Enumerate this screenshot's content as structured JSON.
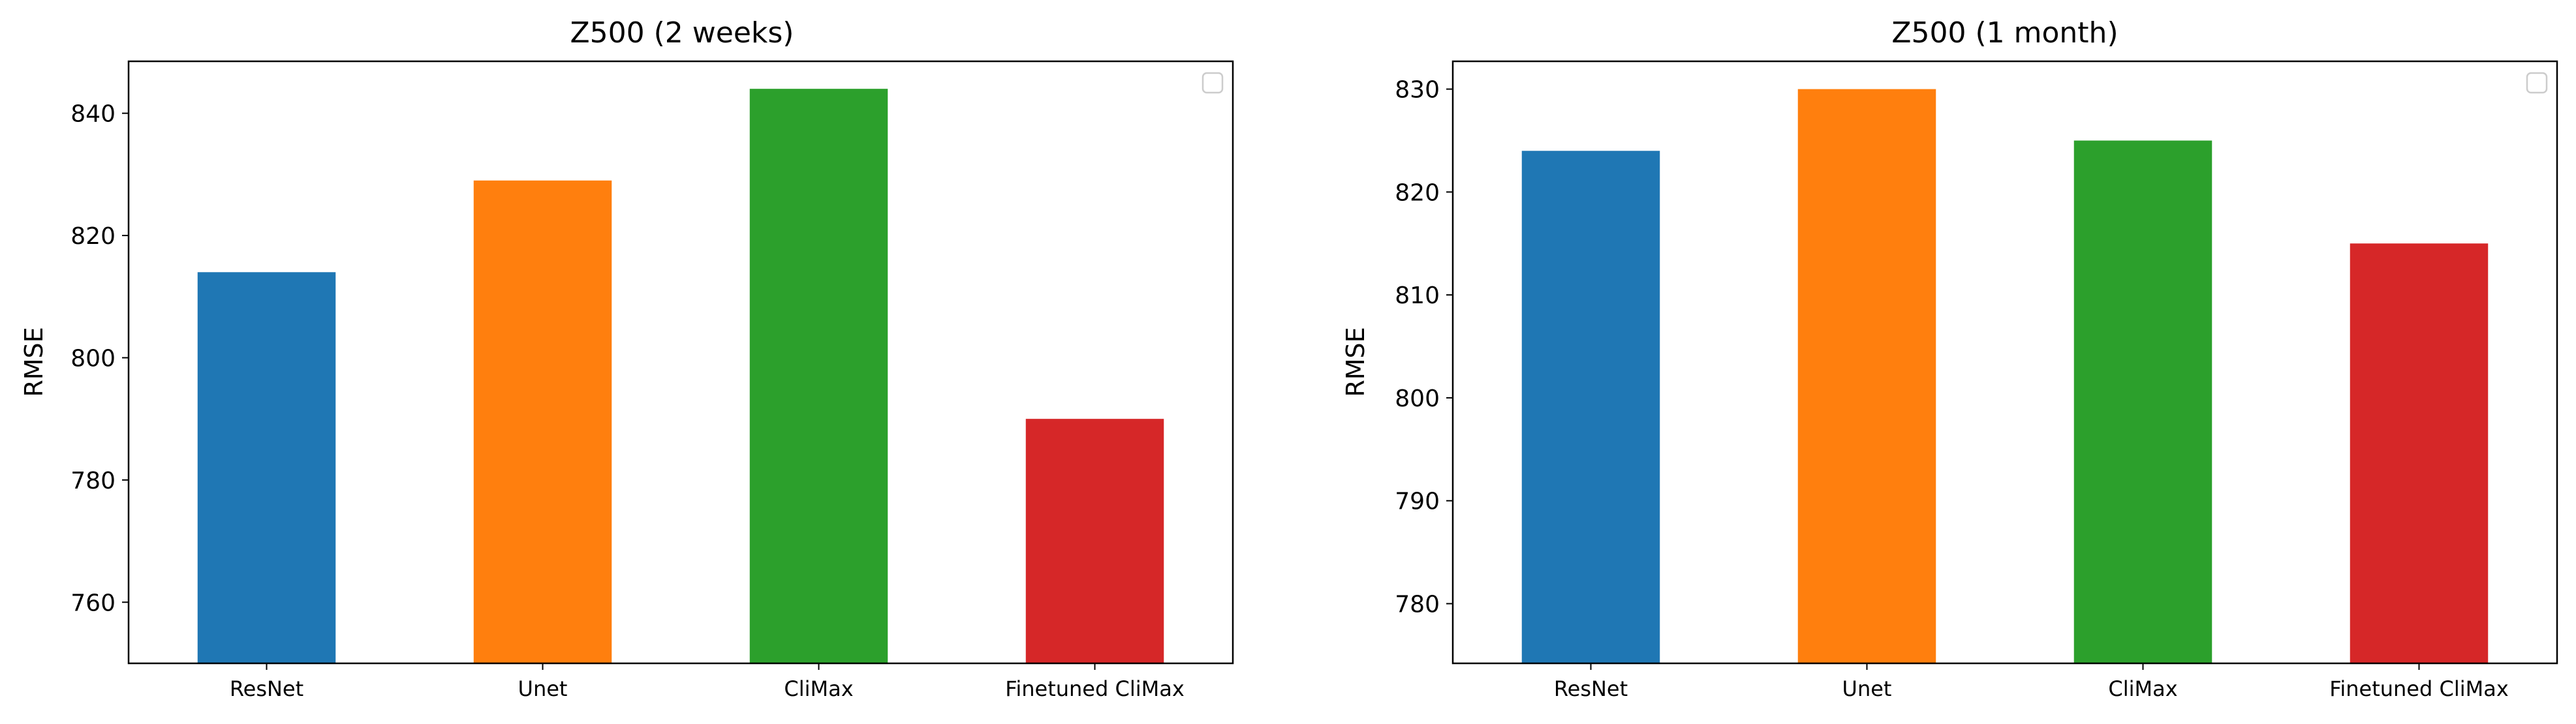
{
  "chart_data": [
    {
      "type": "bar",
      "title": "Z500 (2 weeks)",
      "xlabel": "",
      "ylabel": "RMSE",
      "categories": [
        "ResNet",
        "Unet",
        "CliMax",
        "Finetuned CliMax"
      ],
      "values": [
        814,
        829,
        844,
        790
      ],
      "colors": [
        "#1f77b4",
        "#ff7f0e",
        "#2ca02c",
        "#d62728"
      ],
      "ylim": [
        750,
        848.5
      ],
      "yticks": [
        760,
        780,
        800,
        820,
        840
      ],
      "grid": false,
      "legend": "top-right (empty)"
    },
    {
      "type": "bar",
      "title": "Z500 (1 month)",
      "xlabel": "",
      "ylabel": "RMSE",
      "categories": [
        "ResNet",
        "Unet",
        "CliMax",
        "Finetuned CliMax"
      ],
      "values": [
        824,
        830,
        825,
        815
      ],
      "colors": [
        "#1f77b4",
        "#ff7f0e",
        "#2ca02c",
        "#d62728"
      ],
      "ylim": [
        774.2,
        832.7
      ],
      "yticks": [
        780,
        790,
        800,
        810,
        820,
        830
      ],
      "grid": false,
      "legend": "top-right (empty)"
    }
  ]
}
